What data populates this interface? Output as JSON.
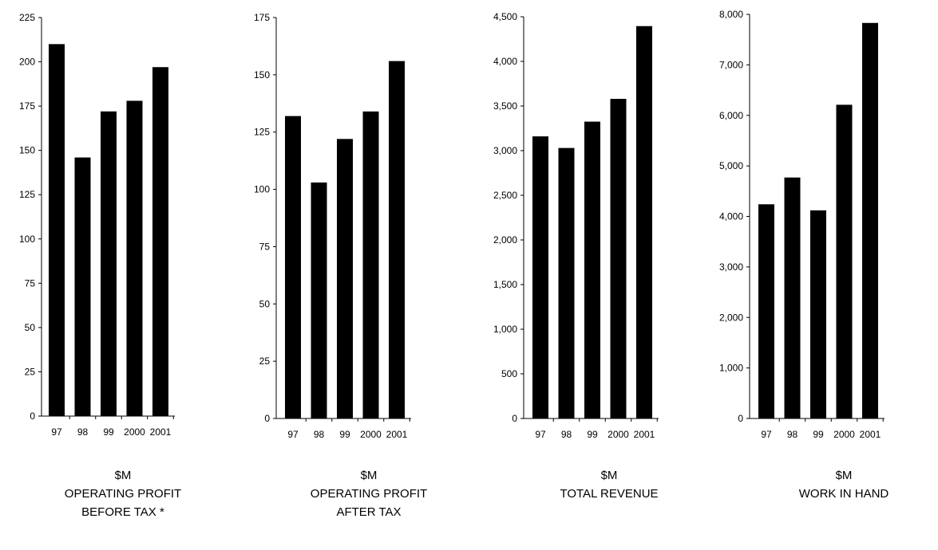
{
  "chart_data": [
    {
      "type": "bar",
      "categories": [
        "97",
        "98",
        "99",
        "2000",
        "2001"
      ],
      "values": [
        210,
        146,
        172,
        178,
        197
      ],
      "ylim": [
        0,
        225
      ],
      "yticks": [
        0,
        25,
        50,
        75,
        100,
        125,
        150,
        175,
        200,
        225
      ],
      "ytick_labels": [
        "0",
        "25",
        "50",
        "75",
        "100",
        "125",
        "150",
        "175",
        "200",
        "225"
      ],
      "caption_lines": [
        "$M",
        "OPERATING PROFIT",
        "BEFORE TAX *"
      ],
      "grid": false
    },
    {
      "type": "bar",
      "categories": [
        "97",
        "98",
        "99",
        "2000",
        "2001"
      ],
      "values": [
        132,
        103,
        122,
        134,
        156
      ],
      "ylim": [
        0,
        175
      ],
      "yticks": [
        0,
        25,
        50,
        75,
        100,
        125,
        150,
        175
      ],
      "ytick_labels": [
        "0",
        "25",
        "50",
        "75",
        "100",
        "125",
        "150",
        "175"
      ],
      "caption_lines": [
        "$M",
        "OPERATING PROFIT",
        "AFTER TAX"
      ],
      "grid": false
    },
    {
      "type": "bar",
      "categories": [
        "97",
        "98",
        "99",
        "2000",
        "2001"
      ],
      "values": [
        3160,
        3030,
        3325,
        3580,
        4395
      ],
      "ylim": [
        0,
        4500
      ],
      "yticks": [
        0,
        500,
        1000,
        1500,
        2000,
        2500,
        3000,
        3500,
        4000,
        4500
      ],
      "ytick_labels": [
        "0",
        "500",
        "1,000",
        "1,500",
        "2,000",
        "2,500",
        "3,000",
        "3,500",
        "4,000",
        "4,500"
      ],
      "caption_lines": [
        "$M",
        "TOTAL REVENUE"
      ],
      "grid": false
    },
    {
      "type": "bar",
      "categories": [
        "97",
        "98",
        "99",
        "2000",
        "2001"
      ],
      "values": [
        4240,
        4770,
        4120,
        6210,
        7830
      ],
      "ylim": [
        0,
        8000
      ],
      "yticks": [
        0,
        1000,
        2000,
        3000,
        4000,
        5000,
        6000,
        7000,
        8000
      ],
      "ytick_labels": [
        "0",
        "1,000",
        "2,000",
        "3,000",
        "4,000",
        "5,000",
        "6,000",
        "7,000",
        "8,000"
      ],
      "caption_lines": [
        "$M",
        "WORK IN HAND"
      ],
      "grid": false
    }
  ],
  "colors": {
    "bar": "#000000",
    "axis": "#000000",
    "background": "#ffffff"
  }
}
